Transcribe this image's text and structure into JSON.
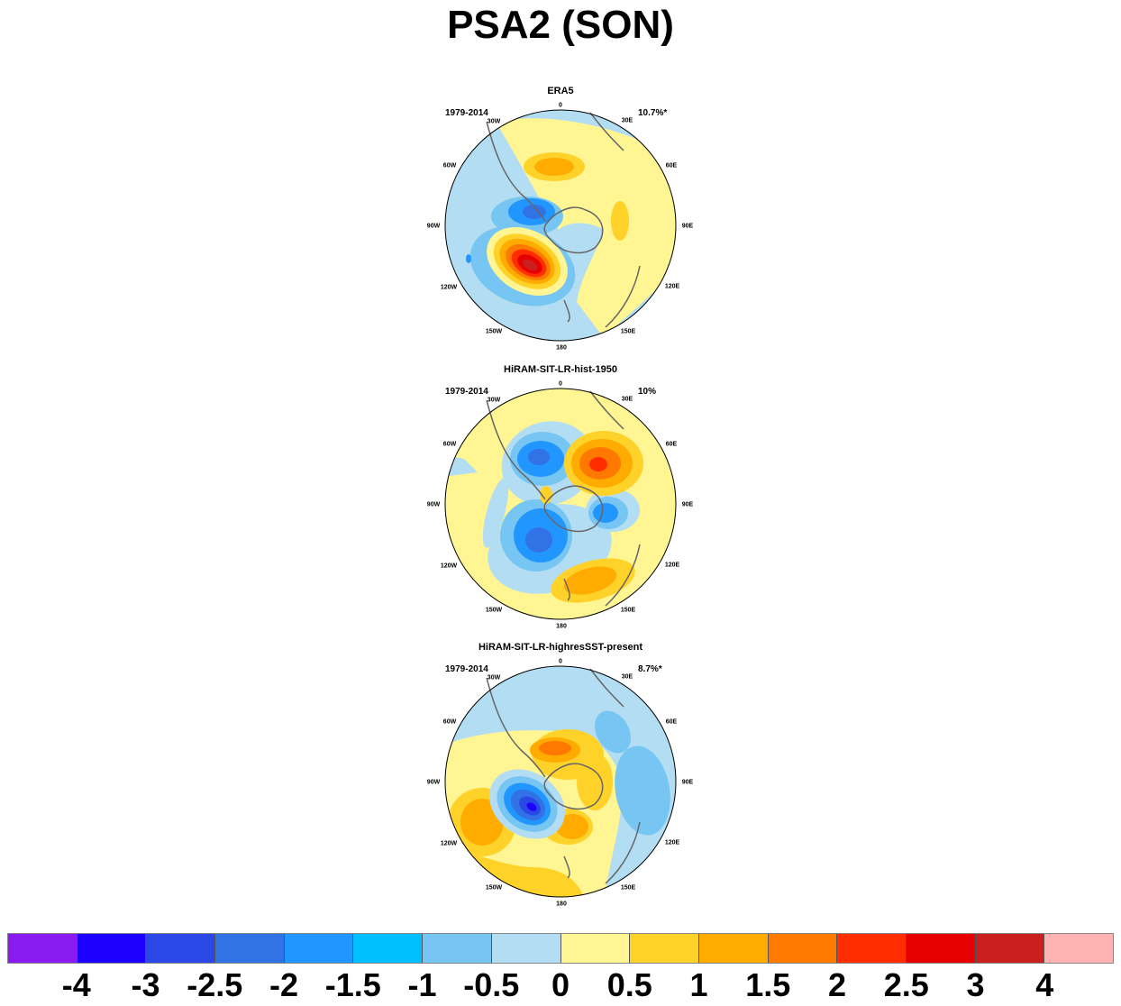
{
  "title": "PSA2 (SON)",
  "panels": [
    {
      "name": "ERA5",
      "period": "1979-2014",
      "percent": "10.7%*"
    },
    {
      "name": "HiRAM-SIT-LR-hist-1950",
      "period": "1979-2014",
      "percent": "10%"
    },
    {
      "name": "HiRAM-SIT-LR-highresSST-present",
      "period": "1979-2014",
      "percent": "8.7%*"
    }
  ],
  "longitude_labels": [
    "0",
    "30E",
    "60E",
    "90E",
    "120E",
    "150E",
    "180",
    "150W",
    "120W",
    "90W",
    "60W",
    "30W"
  ],
  "colorbar": {
    "colors": [
      "#8a1bf0",
      "#1e00ff",
      "#2b47e6",
      "#3173e6",
      "#2296ff",
      "#00bfff",
      "#76c5f2",
      "#b3ddf2",
      "#fff593",
      "#ffd22a",
      "#ffab00",
      "#ff7800",
      "#ff2d00",
      "#e60000",
      "#cb1f1f",
      "#ffb2b2"
    ],
    "labels": [
      "-4",
      "-3",
      "-2.5",
      "-2",
      "-1.5",
      "-1",
      "-0.5",
      "0",
      "0.5",
      "1",
      "1.5",
      "2",
      "2.5",
      "3",
      "4"
    ]
  }
}
